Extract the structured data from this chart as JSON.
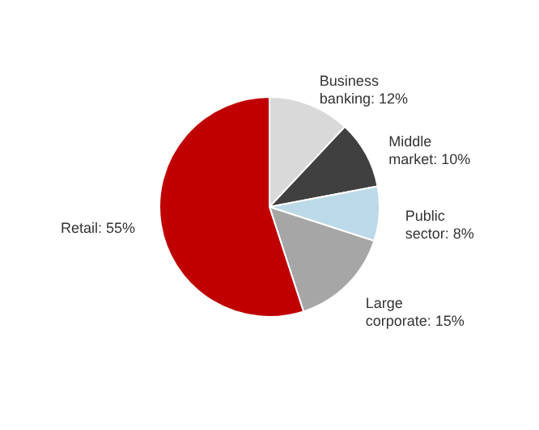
{
  "chart_data": {
    "type": "pie",
    "categories": [
      "Business banking",
      "Middle market",
      "Public sector",
      "Large corporate",
      "Retail"
    ],
    "values": [
      12,
      10,
      8,
      15,
      55
    ],
    "value_labels": [
      "12%",
      "10%",
      "8%",
      "15%",
      "55%"
    ],
    "colors": [
      "#d9d9d9",
      "#404040",
      "#bcd9e8",
      "#a6a6a6",
      "#c00000"
    ]
  }
}
